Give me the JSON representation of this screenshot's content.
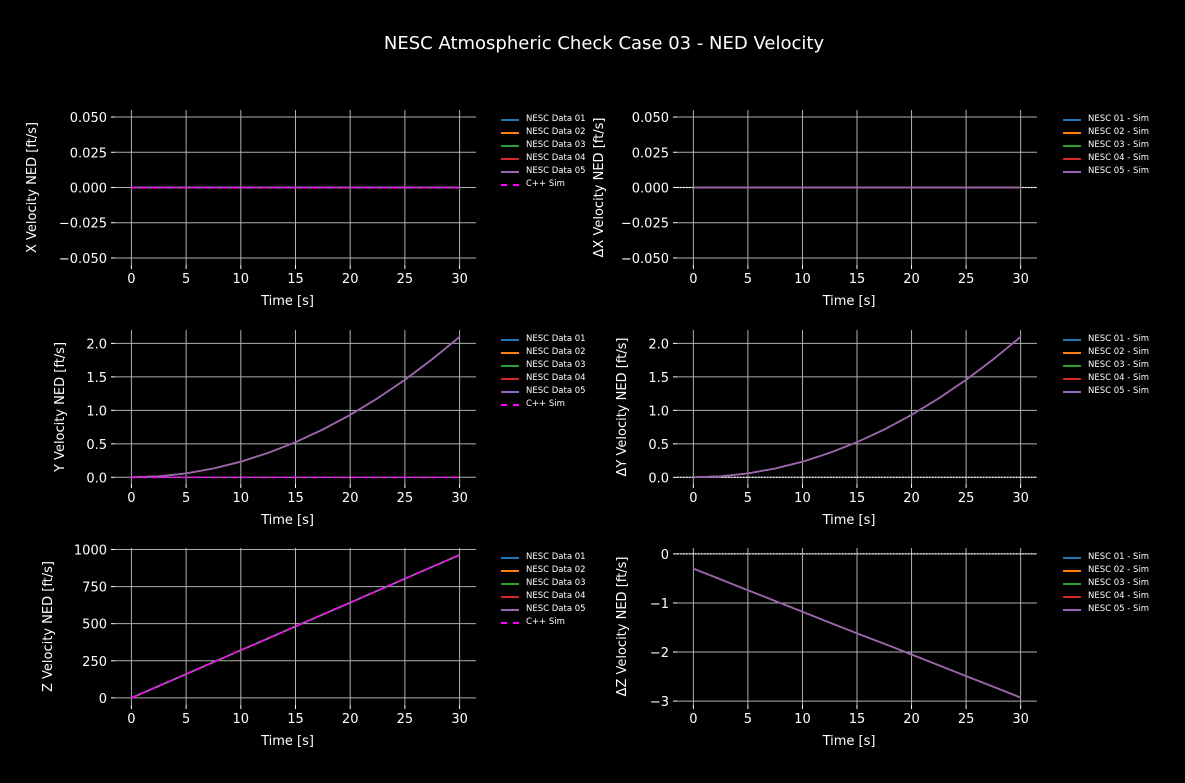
{
  "title": "NESC Atmospheric Check Case 03 - NED Velocity",
  "chart_data": [
    {
      "type": "line",
      "xlabel": "Time [s]",
      "ylabel": "X Velocity NED [ft/s]",
      "xlim": [
        -1.5,
        31.5
      ],
      "ylim": [
        -0.055,
        0.055
      ],
      "xticks": [
        0,
        5,
        10,
        15,
        20,
        25,
        30
      ],
      "yticks": [
        -0.05,
        -0.025,
        0,
        0.025,
        0.05
      ],
      "ytick_labels": [
        "−0.050",
        "−0.025",
        "0.000",
        "0.025",
        "0.050"
      ],
      "x": [
        0,
        2.5,
        5,
        7.5,
        10,
        12.5,
        15,
        17.5,
        20,
        22.5,
        25,
        27.5,
        30
      ],
      "series": [
        {
          "name": "NESC Data 01",
          "color": "#1f77b4",
          "values": [
            0,
            0,
            0,
            0,
            0,
            0,
            0,
            0,
            0,
            0,
            0,
            0,
            0
          ]
        },
        {
          "name": "NESC Data 02",
          "color": "#ff7f0e",
          "values": [
            0,
            0,
            0,
            0,
            0,
            0,
            0,
            0,
            0,
            0,
            0,
            0,
            0
          ]
        },
        {
          "name": "NESC Data 03",
          "color": "#2ca02c",
          "values": [
            0,
            0,
            0,
            0,
            0,
            0,
            0,
            0,
            0,
            0,
            0,
            0,
            0
          ]
        },
        {
          "name": "NESC Data 04",
          "color": "#d62728",
          "values": [
            0,
            0,
            0,
            0,
            0,
            0,
            0,
            0,
            0,
            0,
            0,
            0,
            0
          ]
        },
        {
          "name": "NESC Data 05",
          "color": "#9467bd",
          "values": [
            0,
            0,
            0,
            0,
            0,
            0,
            0,
            0,
            0,
            0,
            0,
            0,
            0
          ]
        },
        {
          "name": "C++ Sim",
          "color": "#ff00ff",
          "dashed": true,
          "values": [
            0,
            0,
            0,
            0,
            0,
            0,
            0,
            0,
            0,
            0,
            0,
            0,
            0
          ]
        }
      ]
    },
    {
      "type": "line",
      "xlabel": "Time [s]",
      "ylabel": "ΔX Velocity NED [ft/s]",
      "xlim": [
        -1.5,
        31.5
      ],
      "ylim": [
        -0.055,
        0.055
      ],
      "zero_line": true,
      "xticks": [
        0,
        5,
        10,
        15,
        20,
        25,
        30
      ],
      "yticks": [
        -0.05,
        -0.025,
        0,
        0.025,
        0.05
      ],
      "ytick_labels": [
        "−0.050",
        "−0.025",
        "0.000",
        "0.025",
        "0.050"
      ],
      "x": [
        0,
        2.5,
        5,
        7.5,
        10,
        12.5,
        15,
        17.5,
        20,
        22.5,
        25,
        27.5,
        30
      ],
      "series": [
        {
          "name": "NESC 01 - Sim",
          "color": "#1f77b4",
          "values": [
            0,
            0,
            0,
            0,
            0,
            0,
            0,
            0,
            0,
            0,
            0,
            0,
            0
          ]
        },
        {
          "name": "NESC 02 - Sim",
          "color": "#ff7f0e",
          "values": [
            0,
            0,
            0,
            0,
            0,
            0,
            0,
            0,
            0,
            0,
            0,
            0,
            0
          ]
        },
        {
          "name": "NESC 03 - Sim",
          "color": "#2ca02c",
          "values": [
            0,
            0,
            0,
            0,
            0,
            0,
            0,
            0,
            0,
            0,
            0,
            0,
            0
          ]
        },
        {
          "name": "NESC 04 - Sim",
          "color": "#d62728",
          "values": [
            0,
            0,
            0,
            0,
            0,
            0,
            0,
            0,
            0,
            0,
            0,
            0,
            0
          ]
        },
        {
          "name": "NESC 05 - Sim",
          "color": "#9467bd",
          "values": [
            0,
            0,
            0,
            0,
            0,
            0,
            0,
            0,
            0,
            0,
            0,
            0,
            0
          ]
        }
      ]
    },
    {
      "type": "line",
      "xlabel": "Time [s]",
      "ylabel": "Y Velocity NED [ft/s]",
      "xlim": [
        -1.5,
        31.5
      ],
      "ylim": [
        -0.1,
        2.2
      ],
      "xticks": [
        0,
        5,
        10,
        15,
        20,
        25,
        30
      ],
      "yticks": [
        0,
        0.5,
        1,
        1.5,
        2
      ],
      "ytick_labels": [
        "0.0",
        "0.5",
        "1.0",
        "1.5",
        "2.0"
      ],
      "x": [
        0,
        2.5,
        5,
        7.5,
        10,
        12.5,
        15,
        17.5,
        20,
        22.5,
        25,
        27.5,
        30
      ],
      "series": [
        {
          "name": "NESC Data 01",
          "color": "#1f77b4",
          "values": [
            0,
            0.015,
            0.058,
            0.131,
            0.233,
            0.364,
            0.524,
            0.714,
            0.932,
            1.18,
            1.456,
            1.762,
            2.097
          ]
        },
        {
          "name": "NESC Data 02",
          "color": "#ff7f0e",
          "values": [
            0,
            0.015,
            0.058,
            0.131,
            0.233,
            0.364,
            0.524,
            0.714,
            0.932,
            1.18,
            1.456,
            1.762,
            2.097
          ]
        },
        {
          "name": "NESC Data 03",
          "color": "#2ca02c",
          "values": [
            0,
            0.015,
            0.058,
            0.131,
            0.233,
            0.364,
            0.524,
            0.714,
            0.932,
            1.18,
            1.456,
            1.762,
            2.097
          ]
        },
        {
          "name": "NESC Data 04",
          "color": "#d62728",
          "values": [
            0,
            0.015,
            0.058,
            0.131,
            0.233,
            0.364,
            0.524,
            0.714,
            0.932,
            1.18,
            1.456,
            1.762,
            2.097
          ]
        },
        {
          "name": "NESC Data 05",
          "color": "#9467bd",
          "values": [
            0,
            0.015,
            0.058,
            0.131,
            0.233,
            0.364,
            0.524,
            0.714,
            0.932,
            1.18,
            1.456,
            1.762,
            2.097
          ]
        },
        {
          "name": "C++ Sim",
          "color": "#ff00ff",
          "dashed": true,
          "values": [
            0,
            0,
            0,
            0,
            0,
            0,
            0,
            0,
            0,
            0,
            0,
            0,
            0
          ]
        }
      ]
    },
    {
      "type": "line",
      "xlabel": "Time [s]",
      "ylabel": "ΔY Velocity NED [ft/s]",
      "xlim": [
        -1.5,
        31.5
      ],
      "ylim": [
        -0.1,
        2.2
      ],
      "zero_line": true,
      "xticks": [
        0,
        5,
        10,
        15,
        20,
        25,
        30
      ],
      "yticks": [
        0,
        0.5,
        1,
        1.5,
        2
      ],
      "ytick_labels": [
        "0.0",
        "0.5",
        "1.0",
        "1.5",
        "2.0"
      ],
      "x": [
        0,
        2.5,
        5,
        7.5,
        10,
        12.5,
        15,
        17.5,
        20,
        22.5,
        25,
        27.5,
        30
      ],
      "series": [
        {
          "name": "NESC 01 - Sim",
          "color": "#1f77b4",
          "values": [
            0,
            0.015,
            0.058,
            0.131,
            0.233,
            0.364,
            0.524,
            0.714,
            0.932,
            1.18,
            1.456,
            1.762,
            2.097
          ]
        },
        {
          "name": "NESC 02 - Sim",
          "color": "#ff7f0e",
          "values": [
            0,
            0.015,
            0.058,
            0.131,
            0.233,
            0.364,
            0.524,
            0.714,
            0.932,
            1.18,
            1.456,
            1.762,
            2.097
          ]
        },
        {
          "name": "NESC 03 - Sim",
          "color": "#2ca02c",
          "values": [
            0,
            0.015,
            0.058,
            0.131,
            0.233,
            0.364,
            0.524,
            0.714,
            0.932,
            1.18,
            1.456,
            1.762,
            2.097
          ]
        },
        {
          "name": "NESC 04 - Sim",
          "color": "#d62728",
          "values": [
            0,
            0.015,
            0.058,
            0.131,
            0.233,
            0.364,
            0.524,
            0.714,
            0.932,
            1.18,
            1.456,
            1.762,
            2.097
          ]
        },
        {
          "name": "NESC 05 - Sim",
          "color": "#9467bd",
          "values": [
            0,
            0.015,
            0.058,
            0.131,
            0.233,
            0.364,
            0.524,
            0.714,
            0.932,
            1.18,
            1.456,
            1.762,
            2.097
          ]
        }
      ]
    },
    {
      "type": "line",
      "xlabel": "Time [s]",
      "ylabel": "Z Velocity NED [ft/s]",
      "xlim": [
        -1.5,
        31.5
      ],
      "ylim": [
        -48,
        1010
      ],
      "xticks": [
        0,
        5,
        10,
        15,
        20,
        25,
        30
      ],
      "yticks": [
        0,
        250,
        500,
        750,
        1000
      ],
      "ytick_labels": [
        "0",
        "250",
        "500",
        "750",
        "1000"
      ],
      "x": [
        0,
        2.5,
        5,
        7.5,
        10,
        12.5,
        15,
        17.5,
        20,
        22.5,
        25,
        27.5,
        30
      ],
      "series": [
        {
          "name": "NESC Data 01",
          "color": "#1f77b4",
          "values": [
            0,
            80,
            160,
            241,
            321,
            401,
            482,
            562,
            642,
            722,
            803,
            883,
            963
          ]
        },
        {
          "name": "NESC Data 02",
          "color": "#ff7f0e",
          "values": [
            0,
            80,
            160,
            241,
            321,
            401,
            482,
            562,
            642,
            722,
            803,
            883,
            963
          ]
        },
        {
          "name": "NESC Data 03",
          "color": "#2ca02c",
          "values": [
            0,
            80,
            160,
            241,
            321,
            401,
            482,
            562,
            642,
            722,
            803,
            883,
            963
          ]
        },
        {
          "name": "NESC Data 04",
          "color": "#d62728",
          "values": [
            0,
            80,
            160,
            241,
            321,
            401,
            482,
            562,
            642,
            722,
            803,
            883,
            963
          ]
        },
        {
          "name": "NESC Data 05",
          "color": "#9467bd",
          "values": [
            0,
            80,
            160,
            241,
            321,
            401,
            482,
            562,
            642,
            722,
            803,
            883,
            963
          ]
        },
        {
          "name": "C++ Sim",
          "color": "#ff00ff",
          "dashed": true,
          "values": [
            0,
            80,
            160,
            241,
            321,
            401,
            482,
            562,
            642,
            722,
            803,
            883,
            963
          ]
        }
      ]
    },
    {
      "type": "line",
      "xlabel": "Time [s]",
      "ylabel": "ΔZ Velocity NED [ft/s]",
      "xlim": [
        -1.5,
        31.5
      ],
      "ylim": [
        -3.08,
        0.12
      ],
      "zero_line": true,
      "xticks": [
        0,
        5,
        10,
        15,
        20,
        25,
        30
      ],
      "yticks": [
        -3,
        -2,
        -1,
        0
      ],
      "ytick_labels": [
        "−3",
        "−2",
        "−1",
        "0"
      ],
      "x": [
        0,
        2.5,
        5,
        7.5,
        10,
        12.5,
        15,
        17.5,
        20,
        22.5,
        25,
        27.5,
        30
      ],
      "series": [
        {
          "name": "NESC 01 - Sim",
          "color": "#1f77b4",
          "values": [
            -0.3,
            -0.52,
            -0.74,
            -0.96,
            -1.18,
            -1.4,
            -1.62,
            -1.83,
            -2.05,
            -2.27,
            -2.49,
            -2.71,
            -2.93
          ]
        },
        {
          "name": "NESC 02 - Sim",
          "color": "#ff7f0e",
          "values": [
            -0.3,
            -0.52,
            -0.74,
            -0.96,
            -1.18,
            -1.4,
            -1.62,
            -1.83,
            -2.05,
            -2.27,
            -2.49,
            -2.71,
            -2.93
          ]
        },
        {
          "name": "NESC 03 - Sim",
          "color": "#2ca02c",
          "values": [
            -0.3,
            -0.52,
            -0.74,
            -0.96,
            -1.18,
            -1.4,
            -1.62,
            -1.83,
            -2.05,
            -2.27,
            -2.49,
            -2.71,
            -2.93
          ]
        },
        {
          "name": "NESC 04 - Sim",
          "color": "#d62728",
          "values": [
            -0.3,
            -0.52,
            -0.74,
            -0.96,
            -1.18,
            -1.4,
            -1.62,
            -1.83,
            -2.05,
            -2.27,
            -2.49,
            -2.71,
            -2.93
          ]
        },
        {
          "name": "NESC 05 - Sim",
          "color": "#9467bd",
          "values": [
            -0.3,
            -0.52,
            -0.74,
            -0.96,
            -1.18,
            -1.4,
            -1.62,
            -1.83,
            -2.05,
            -2.27,
            -2.49,
            -2.71,
            -2.93
          ]
        }
      ]
    }
  ]
}
